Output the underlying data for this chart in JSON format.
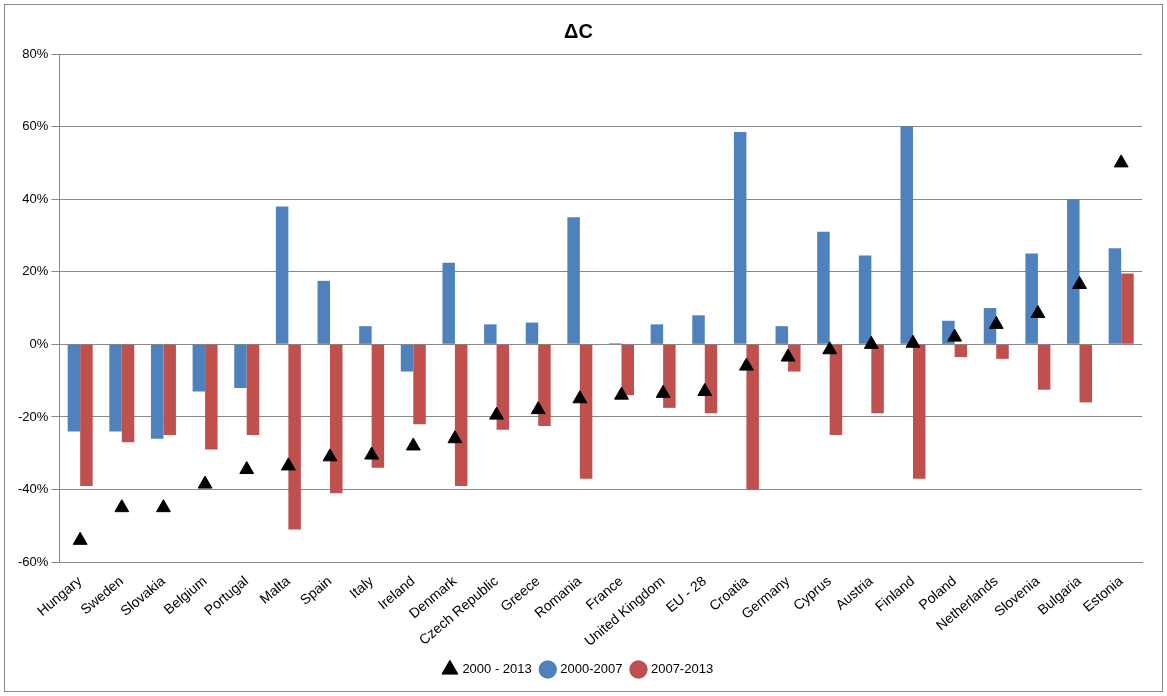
{
  "chart_data": {
    "type": "bar",
    "title": "ΔC",
    "categories": [
      "Hungary",
      "Sweden",
      "Slovakia",
      "Belgium",
      "Portugal",
      "Malta",
      "Spain",
      "Italy",
      "Ireland",
      "Denmark",
      "Czech Republic",
      "Greece",
      "Romania",
      "France",
      "United Kingdom",
      "EU - 28",
      "Croatia",
      "Germany",
      "Cyprus",
      "Austria",
      "Finland",
      "Poland",
      "Netherlands",
      "Slovenia",
      "Bulgaria",
      "Estonia"
    ],
    "series": [
      {
        "name": "2000-2007",
        "color": "#4f81bd",
        "values": [
          -24,
          -24,
          -26,
          -13,
          -12,
          38,
          17.5,
          5,
          -7.5,
          22.5,
          5.5,
          6,
          35,
          0.3,
          5.5,
          8,
          58.5,
          5,
          31,
          24.5,
          60,
          6.5,
          10,
          25,
          40,
          26.5
        ]
      },
      {
        "name": "2007-2013",
        "color": "#c0504d",
        "values": [
          -39,
          -27,
          -25,
          -29,
          -25,
          -51,
          -41,
          -34,
          -22,
          -39,
          -23.5,
          -22.5,
          -37,
          -14,
          -17.5,
          -19,
          -40,
          -7.5,
          -25,
          -19,
          -37,
          -3.5,
          -4,
          -12.5,
          -16,
          19.5
        ]
      },
      {
        "name": "2000 - 2013",
        "type": "scatter",
        "marker": "triangle",
        "color": "#000000",
        "x": [
          "Hungary",
          "Sweden",
          "Slovakia",
          "Belgium",
          "Portugal",
          "Malta",
          "Spain",
          "Italy",
          "Ireland",
          "Denmark",
          "Czech Republic",
          "Greece",
          "Romania",
          "France",
          "United Kingdom",
          "EU - 28",
          "Croatia",
          "Germany",
          "Cyprus",
          "Austria",
          "Finland",
          "Poland",
          "Netherlands",
          "Slovenia",
          "Bulgaria",
          "Estonia"
        ],
        "values": [
          -54,
          -45,
          -45,
          -38.5,
          -34.5,
          -33.5,
          -31,
          -30.5,
          -28,
          -26,
          -19.5,
          -18,
          -15,
          -14,
          -13.5,
          -13,
          -6,
          -3.5,
          -1.5,
          0,
          0.3,
          2,
          5.5,
          8.5,
          16.5,
          50
        ]
      }
    ],
    "ylim": [
      -60,
      80
    ],
    "yticks": [
      {
        "value": -60,
        "label": "-60%"
      },
      {
        "value": -40,
        "label": "-40%"
      },
      {
        "value": -20,
        "label": "-20%"
      },
      {
        "value": 0,
        "label": "0%"
      },
      {
        "value": 20,
        "label": "20%"
      },
      {
        "value": 40,
        "label": "40%"
      },
      {
        "value": 60,
        "label": "60%"
      },
      {
        "value": 80,
        "label": "80%"
      }
    ],
    "grid": "y",
    "legend": "bottom"
  }
}
